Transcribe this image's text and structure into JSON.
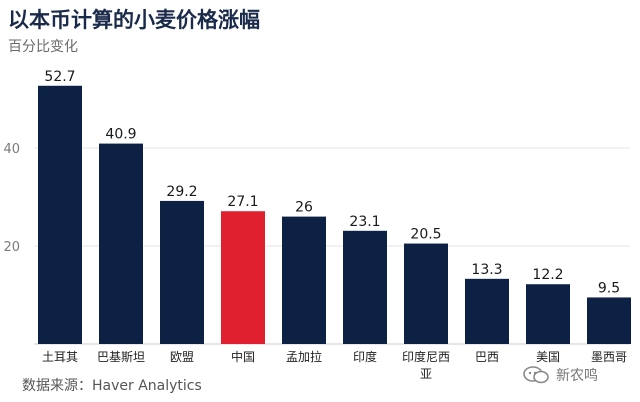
{
  "title": "以本币计算的小麦价格涨幅",
  "subtitle": "百分比变化",
  "source": "数据来源：Haver Analytics",
  "watermark": "新农鸣",
  "colors": {
    "bar": "#0d2145",
    "highlight": "#e0202e",
    "axis_text": "#7a7a7a",
    "grid": "#e6e6e6"
  },
  "chart_data": {
    "type": "bar",
    "title": "以本币计算的小麦价格涨幅",
    "ylabel": "百分比变化",
    "xlabel": "",
    "categories": [
      "土耳其",
      "巴基斯坦",
      "欧盟",
      "中国",
      "孟加拉",
      "印度",
      "印度尼西亚",
      "巴西",
      "美国",
      "墨西哥"
    ],
    "category_lines": [
      [
        "土耳其"
      ],
      [
        "巴基斯坦"
      ],
      [
        "欧盟"
      ],
      [
        "中国"
      ],
      [
        "孟加拉"
      ],
      [
        "印度"
      ],
      [
        "印度尼西",
        "亚"
      ],
      [
        "巴西"
      ],
      [
        "美国"
      ],
      [
        "墨西哥"
      ]
    ],
    "values": [
      52.7,
      40.9,
      29.2,
      27.1,
      26,
      23.1,
      20.5,
      13.3,
      12.2,
      9.5
    ],
    "highlight_category": "中国",
    "ylim": [
      0,
      60
    ],
    "yticks": [
      20,
      40
    ],
    "grid": true,
    "legend": "none"
  }
}
